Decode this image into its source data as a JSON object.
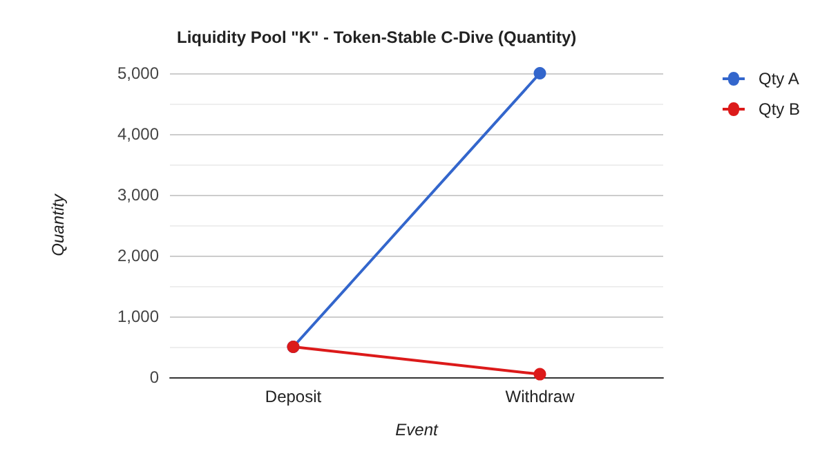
{
  "chart_data": {
    "type": "line",
    "title": "Liquidity Pool \"K\" - Token-Stable C-Dive (Quantity)",
    "xlabel": "Event",
    "ylabel": "Quantity",
    "categories": [
      "Deposit",
      "Withdraw"
    ],
    "series": [
      {
        "name": "Qty A",
        "color": "#3366cc",
        "values": [
          500,
          5000
        ]
      },
      {
        "name": "Qty B",
        "color": "#dc1a1a",
        "values": [
          500,
          50
        ]
      }
    ],
    "ylim": [
      0,
      5000
    ],
    "yticks": [
      0,
      {
        "value": 1000,
        "label": "1,000"
      },
      {
        "value": 2000,
        "label": "2,000"
      },
      {
        "value": 3000,
        "label": "3,000"
      },
      {
        "value": 4000,
        "label": "4,000"
      },
      {
        "value": 5000,
        "label": "5,000"
      }
    ],
    "grid": "y",
    "legend": "top right",
    "marker": "circle",
    "line_style": "solid"
  }
}
